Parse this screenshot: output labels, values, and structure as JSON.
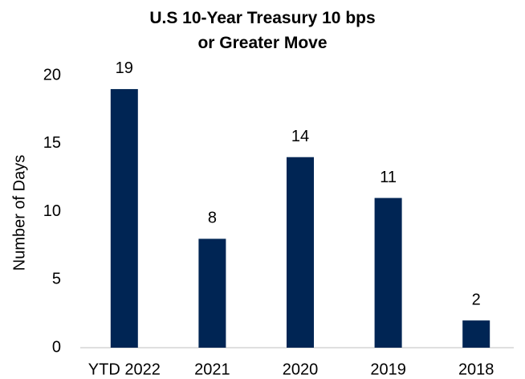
{
  "chart_data": {
    "type": "bar",
    "title": "U.S 10-Year Treasury 10 bps or Greater Move",
    "y_label": "Number of Days",
    "categories": [
      "YTD 2022",
      "2021",
      "2020",
      "2019",
      "2018"
    ],
    "values": [
      19,
      8,
      14,
      11,
      2
    ],
    "color": "#002554",
    "ylim": [
      0,
      20
    ],
    "yticks": [
      0,
      5,
      10,
      15,
      20
    ],
    "grid": false
  }
}
